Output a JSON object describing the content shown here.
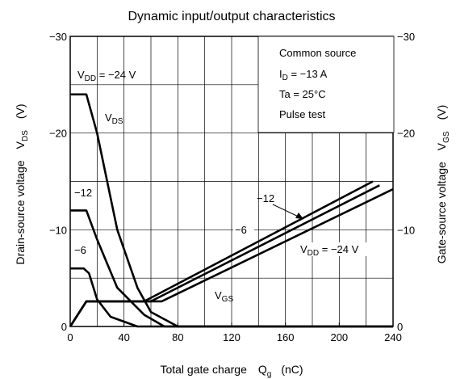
{
  "chart_data": [
    {
      "type": "line",
      "title": "Dynamic input/output characteristics",
      "xlabel": {
        "main": "Total gate charge",
        "symbol": "Q",
        "sub": "g",
        "unit": "(nC)"
      },
      "ylabel_left": {
        "main": "Drain-source voltage",
        "symbol": "V",
        "sub": "DS",
        "unit": "(V)"
      },
      "ylabel_right": {
        "main": "Gate-source voltage",
        "symbol": "V",
        "sub": "GS",
        "unit": "(V)"
      },
      "xlim": [
        0,
        240
      ],
      "ylim": [
        0,
        -30
      ],
      "x_ticks": [
        "0",
        "40",
        "80",
        "120",
        "160",
        "200",
        "240"
      ],
      "y_ticks_left": [
        "0",
        "−10",
        "−20",
        "−30"
      ],
      "y_ticks_right": [
        "0",
        "−10",
        "−20",
        "−30"
      ],
      "grid": true,
      "conditions": [
        "Common source",
        "I_D = −13 A",
        "Ta = 25°C",
        "Pulse test"
      ],
      "conditions_display": {
        "line1": "Common source",
        "line2_main": "I",
        "line2_sub": "D",
        "line2_rest": " = −13 A",
        "line3": "Ta = 25°C",
        "line4": "Pulse test"
      },
      "annotations": {
        "vdd_label_main": "V",
        "vdd_label_sub": "DD",
        "vdd_label_rest": " = −24 V",
        "vds_main": "V",
        "vds_sub": "DS",
        "vgs_main": "V",
        "vgs_sub": "GS",
        "label_12_left": "−12",
        "label_6_left": "−6",
        "label_12_right": "−12",
        "label_6_right": "−6",
        "vdd_right_main": "V",
        "vdd_right_sub": "DD",
        "vdd_right_rest": " = −24 V"
      },
      "series": [
        {
          "axis": "left",
          "x": [
            0,
            12,
            20,
            35,
            50,
            60,
            80,
            240
          ],
          "y": [
            -24,
            -24,
            -20,
            -10,
            -4,
            -1.5,
            0,
            0
          ]
        },
        {
          "axis": "left",
          "x": [
            0,
            12,
            20,
            35,
            55,
            70,
            240
          ],
          "y": [
            -12,
            -12,
            -9,
            -4,
            -1.2,
            0,
            0
          ]
        },
        {
          "axis": "left",
          "x": [
            0,
            10,
            14,
            20,
            30,
            50,
            240
          ],
          "y": [
            -6,
            -6,
            -5.5,
            -2.8,
            -1,
            0,
            0
          ]
        },
        {
          "axis": "right",
          "x": [
            0,
            12,
            55,
            225
          ],
          "y": [
            0,
            -2.6,
            -2.6,
            -15
          ]
        },
        {
          "axis": "right",
          "x": [
            0,
            12,
            60,
            230
          ],
          "y": [
            0,
            -2.6,
            -2.6,
            -14.6
          ]
        },
        {
          "axis": "right",
          "x": [
            0,
            12,
            68,
            240
          ],
          "y": [
            0,
            -2.6,
            -2.6,
            -14.2
          ]
        }
      ]
    }
  ]
}
